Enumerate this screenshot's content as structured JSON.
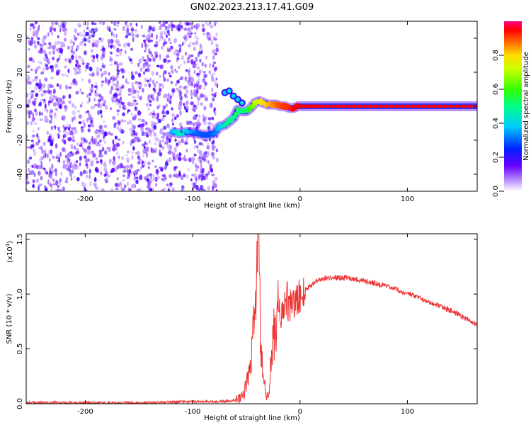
{
  "title": "GN02.2023.213.17.41.G09",
  "chart_data": [
    {
      "type": "heatmap",
      "xlabel": "Height of straight line (km)",
      "ylabel": "Frequency (Hz)",
      "xlim": [
        -255,
        165
      ],
      "ylim": [
        -50,
        50
      ],
      "x_ticks": [
        -200,
        -100,
        0,
        100
      ],
      "y_ticks": [
        -40,
        -20,
        0,
        20,
        40
      ],
      "colorbar": {
        "label": "Normalized spectral amplitude",
        "range": [
          0,
          1
        ],
        "ticks": [
          "0.0",
          "0.2",
          "0.4",
          "0.6",
          "0.8"
        ],
        "tick_values": [
          0,
          0.2,
          0.4,
          0.6,
          0.8
        ]
      },
      "noise_region_x": [
        -255,
        -77
      ],
      "ridge": {
        "x": [
          -120,
          -112,
          -104,
          -96,
          -88,
          -80,
          -75,
          -70,
          -66,
          -62,
          -58,
          -54,
          -50,
          -46,
          -42,
          -38,
          -34,
          -30,
          -26,
          -22,
          -18,
          -14,
          -10,
          -6,
          -2,
          0,
          10,
          20,
          40,
          60,
          80,
          100,
          120,
          140,
          165
        ],
        "y": [
          -15,
          -16,
          -15,
          -16,
          -17,
          -16,
          -12,
          -11,
          -9,
          -7,
          -2,
          -3,
          -3,
          -1,
          2,
          3,
          2,
          1,
          1,
          1,
          0,
          0,
          -1,
          -1,
          0,
          0,
          0,
          0,
          0,
          0,
          0,
          0,
          0,
          0,
          0
        ],
        "amplitude": [
          0.35,
          0.45,
          0.38,
          0.3,
          0.28,
          0.3,
          0.38,
          0.45,
          0.5,
          0.48,
          0.55,
          0.5,
          0.52,
          0.6,
          0.7,
          0.75,
          0.8,
          0.82,
          0.85,
          0.88,
          0.9,
          0.92,
          0.92,
          0.95,
          0.95,
          0.95,
          0.96,
          0.97,
          0.97,
          0.97,
          0.97,
          0.97,
          0.97,
          0.97,
          0.97
        ]
      },
      "upper_branch": {
        "x": [
          -70,
          -66,
          -62,
          -58,
          -54
        ],
        "y": [
          8,
          9,
          6,
          4,
          2
        ]
      }
    },
    {
      "type": "line",
      "xlabel": "Height of straight line (km)",
      "ylabel": "SNR (10 * v/v)",
      "multiplier_label": "(x10",
      "multiplier_exp": "4",
      "xlim": [
        -255,
        165
      ],
      "ylim": [
        0,
        1.55
      ],
      "x_ticks": [
        -200,
        -100,
        0,
        100
      ],
      "y_ticks": [
        "0.0",
        "0.5",
        "1.0",
        "1.5"
      ],
      "y_tick_values": [
        0,
        0.5,
        1.0,
        1.5
      ],
      "color": "#ee3333",
      "series": [
        {
          "x": [
            -255,
            -220,
            -180,
            -140,
            -110,
            -90,
            -70,
            -58,
            -52,
            -48,
            -45,
            -43,
            -41,
            -40,
            -39,
            -38,
            -37,
            -35,
            -33,
            -31,
            -29,
            -27,
            -25,
            -22,
            -20,
            -18,
            -15,
            -12,
            -10,
            -7,
            -5,
            -2,
            0,
            3,
            6,
            10,
            15,
            20,
            30,
            40,
            50,
            60,
            70,
            80,
            90,
            100,
            110,
            120,
            130,
            140,
            150,
            160,
            165
          ],
          "y": [
            0.01,
            0.01,
            0.01,
            0.01,
            0.02,
            0.02,
            0.02,
            0.04,
            0.1,
            0.25,
            0.45,
            0.7,
            1.05,
            1.4,
            1.5,
            1.2,
            0.7,
            0.3,
            0.15,
            0.06,
            0.1,
            0.35,
            0.6,
            0.75,
            0.85,
            0.8,
            0.9,
            0.95,
            0.85,
            0.95,
            0.9,
            0.95,
            1.0,
            1.0,
            1.05,
            1.08,
            1.12,
            1.14,
            1.15,
            1.15,
            1.14,
            1.12,
            1.1,
            1.07,
            1.04,
            1.0,
            0.97,
            0.93,
            0.89,
            0.85,
            0.8,
            0.75,
            0.72
          ]
        }
      ]
    }
  ]
}
